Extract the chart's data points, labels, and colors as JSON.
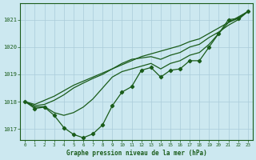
{
  "bg_color": "#cce8f0",
  "grid_color": "#aaccda",
  "line_color": "#1a5c1a",
  "xlabel": "Graphe pression niveau de la mer (hPa)",
  "ylim": [
    1016.6,
    1021.6
  ],
  "xlim": [
    -0.5,
    23.5
  ],
  "yticks": [
    1017,
    1018,
    1019,
    1020,
    1021
  ],
  "xticks": [
    0,
    1,
    2,
    3,
    4,
    5,
    6,
    7,
    8,
    9,
    10,
    11,
    12,
    13,
    14,
    15,
    16,
    17,
    18,
    19,
    20,
    21,
    22,
    23
  ],
  "series_zigzag": [
    1018.0,
    1017.75,
    1017.8,
    1017.5,
    1017.05,
    1016.8,
    1016.68,
    1016.82,
    1017.15,
    1017.85,
    1018.35,
    1018.55,
    1019.15,
    1019.25,
    1018.9,
    1019.15,
    1019.2,
    1019.5,
    1019.5,
    1020.0,
    1020.5,
    1021.0,
    1021.05,
    1021.3
  ],
  "series_smooth1": [
    1018.0,
    1017.9,
    1018.05,
    1018.2,
    1018.4,
    1018.6,
    1018.75,
    1018.9,
    1019.05,
    1019.2,
    1019.35,
    1019.5,
    1019.65,
    1019.75,
    1019.85,
    1019.95,
    1020.05,
    1020.2,
    1020.3,
    1020.5,
    1020.7,
    1020.9,
    1021.1,
    1021.3
  ],
  "series_smooth2": [
    1018.0,
    1017.85,
    1017.9,
    1018.05,
    1018.25,
    1018.5,
    1018.68,
    1018.85,
    1019.0,
    1019.2,
    1019.4,
    1019.55,
    1019.6,
    1019.65,
    1019.55,
    1019.7,
    1019.8,
    1020.0,
    1020.1,
    1020.35,
    1020.55,
    1020.8,
    1021.0,
    1021.3
  ],
  "series_smooth3": [
    1018.0,
    1017.8,
    1017.82,
    1017.6,
    1017.5,
    1017.6,
    1017.8,
    1018.1,
    1018.5,
    1018.9,
    1019.1,
    1019.2,
    1019.3,
    1019.4,
    1019.2,
    1019.4,
    1019.5,
    1019.7,
    1019.8,
    1020.1,
    1020.5,
    1020.9,
    1021.05,
    1021.3
  ]
}
